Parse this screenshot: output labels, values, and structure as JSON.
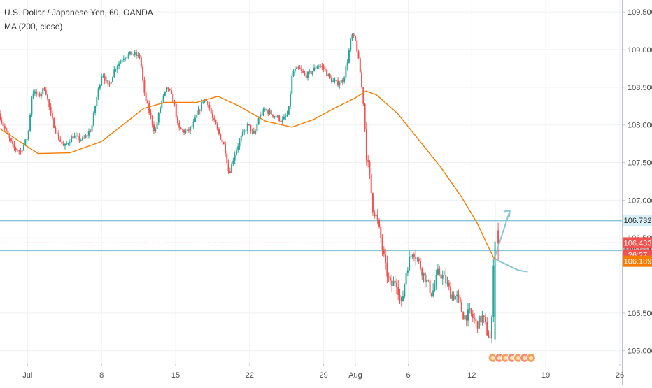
{
  "chart_data": {
    "type": "candlestick",
    "title": "U.S. Dollar / Japanese Yen, 60, OANDA",
    "indicator_label": "MA (200, close)",
    "x_axis_ticks": [
      {
        "label": "Jul",
        "day": 1
      },
      {
        "label": "8",
        "day": 8
      },
      {
        "label": "15",
        "day": 15
      },
      {
        "label": "22",
        "day": 22
      },
      {
        "label": "29",
        "day": 29
      },
      {
        "label": "Aug",
        "day": 32
      },
      {
        "label": "6",
        "day": 37
      },
      {
        "label": "12",
        "day": 43
      },
      {
        "label": "19",
        "day": 50
      },
      {
        "label": "26",
        "day": 57
      }
    ],
    "x_range_days": [
      -1.6,
      57.2
    ],
    "y_axis_ticks": [
      "109.500",
      "109.000",
      "108.500",
      "108.000",
      "107.500",
      "107.000",
      "106.500",
      "105.500",
      "105.000"
    ],
    "ylim": [
      104.83,
      109.66
    ],
    "price_path": [
      [
        -1.6,
        108.15
      ],
      [
        -1.0,
        107.95
      ],
      [
        -0.2,
        107.7
      ],
      [
        0.5,
        107.65
      ],
      [
        1.2,
        107.85
      ],
      [
        1.6,
        108.45
      ],
      [
        2.2,
        108.38
      ],
      [
        2.8,
        108.5
      ],
      [
        3.4,
        108.1
      ],
      [
        4.0,
        107.85
      ],
      [
        4.6,
        107.7
      ],
      [
        5.4,
        107.85
      ],
      [
        6.4,
        107.8
      ],
      [
        7.2,
        107.95
      ],
      [
        7.6,
        108.3
      ],
      [
        8.2,
        108.7
      ],
      [
        8.8,
        108.5
      ],
      [
        9.4,
        108.75
      ],
      [
        10.2,
        108.9
      ],
      [
        11.0,
        108.95
      ],
      [
        11.8,
        108.9
      ],
      [
        12.2,
        108.4
      ],
      [
        12.8,
        108.1
      ],
      [
        13.2,
        107.9
      ],
      [
        13.8,
        108.3
      ],
      [
        14.4,
        108.5
      ],
      [
        15.0,
        108.3
      ],
      [
        15.4,
        107.95
      ],
      [
        16.2,
        107.9
      ],
      [
        16.8,
        108.0
      ],
      [
        17.4,
        108.2
      ],
      [
        17.8,
        108.35
      ],
      [
        18.2,
        108.3
      ],
      [
        18.6,
        108.1
      ],
      [
        19.2,
        107.9
      ],
      [
        19.8,
        107.7
      ],
      [
        20.2,
        107.35
      ],
      [
        20.8,
        107.65
      ],
      [
        21.4,
        107.85
      ],
      [
        22.0,
        108.0
      ],
      [
        22.6,
        107.85
      ],
      [
        23.0,
        108.1
      ],
      [
        23.6,
        108.2
      ],
      [
        24.2,
        108.15
      ],
      [
        24.8,
        108.1
      ],
      [
        25.2,
        108.05
      ],
      [
        25.8,
        108.15
      ],
      [
        26.2,
        108.7
      ],
      [
        26.8,
        108.75
      ],
      [
        27.4,
        108.65
      ],
      [
        28.0,
        108.7
      ],
      [
        28.6,
        108.8
      ],
      [
        29.2,
        108.75
      ],
      [
        29.8,
        108.6
      ],
      [
        30.4,
        108.55
      ],
      [
        31.0,
        108.6
      ],
      [
        31.4,
        108.85
      ],
      [
        31.8,
        109.2
      ],
      [
        32.2,
        109.1
      ],
      [
        32.6,
        108.7
      ],
      [
        32.9,
        108.3
      ],
      [
        33.2,
        107.6
      ],
      [
        33.5,
        107.3
      ],
      [
        33.8,
        106.9
      ],
      [
        34.2,
        106.75
      ],
      [
        34.6,
        106.45
      ],
      [
        35.0,
        106.1
      ],
      [
        35.5,
        105.85
      ],
      [
        36.0,
        105.95
      ],
      [
        36.5,
        105.6
      ],
      [
        37.0,
        106.1
      ],
      [
        37.6,
        106.35
      ],
      [
        38.2,
        106.15
      ],
      [
        38.8,
        105.95
      ],
      [
        39.4,
        105.75
      ],
      [
        40.0,
        106.05
      ],
      [
        40.6,
        105.95
      ],
      [
        41.2,
        105.75
      ],
      [
        41.8,
        105.7
      ],
      [
        42.4,
        105.45
      ],
      [
        43.0,
        105.5
      ],
      [
        43.6,
        105.35
      ],
      [
        44.2,
        105.45
      ],
      [
        44.6,
        105.25
      ],
      [
        45.0,
        105.12
      ],
      [
        45.2,
        106.2
      ],
      [
        45.5,
        106.433
      ]
    ],
    "moving_average": [
      [
        -1.6,
        107.95
      ],
      [
        2.0,
        107.62
      ],
      [
        5.0,
        107.63
      ],
      [
        8.0,
        107.78
      ],
      [
        10.0,
        108.0
      ],
      [
        12.0,
        108.22
      ],
      [
        14.0,
        108.3
      ],
      [
        17.0,
        108.3
      ],
      [
        19.0,
        108.38
      ],
      [
        21.0,
        108.25
      ],
      [
        23.5,
        108.05
      ],
      [
        26.0,
        107.97
      ],
      [
        28.0,
        108.07
      ],
      [
        30.0,
        108.22
      ],
      [
        32.0,
        108.36
      ],
      [
        33.0,
        108.45
      ],
      [
        34.0,
        108.4
      ],
      [
        36.0,
        108.15
      ],
      [
        38.0,
        107.8
      ],
      [
        40.0,
        107.45
      ],
      [
        42.0,
        107.05
      ],
      [
        43.5,
        106.7
      ],
      [
        44.5,
        106.4
      ],
      [
        45.2,
        106.2
      ]
    ],
    "horizontal_levels": [
      {
        "name": "resistance",
        "value": 106.732,
        "label": "106.732",
        "color": "#86c6d6"
      },
      {
        "name": "support",
        "value": 106.334,
        "label": "106.334",
        "color": "#86c6d6"
      }
    ],
    "current_price": {
      "value": 106.433,
      "label": "106.433",
      "countdown": "26:27",
      "color": "#ef5350"
    },
    "ma_price": {
      "value": 106.189,
      "label": "106.189",
      "color": "#f57c00"
    },
    "forecast_up": [
      [
        45.2,
        106.25
      ],
      [
        46.6,
        106.86
      ]
    ],
    "forecast_down": [
      [
        45.2,
        106.22
      ],
      [
        46.2,
        106.15
      ],
      [
        47.4,
        106.07
      ],
      [
        48.3,
        106.05
      ]
    ],
    "colors": {
      "up": "#26a69a",
      "down": "#ef5350",
      "ma": "#f57c00",
      "forecast": "#86c6d6",
      "grid": "#eef0f3",
      "axis_text": "#4a4a4a"
    },
    "grid": true
  }
}
